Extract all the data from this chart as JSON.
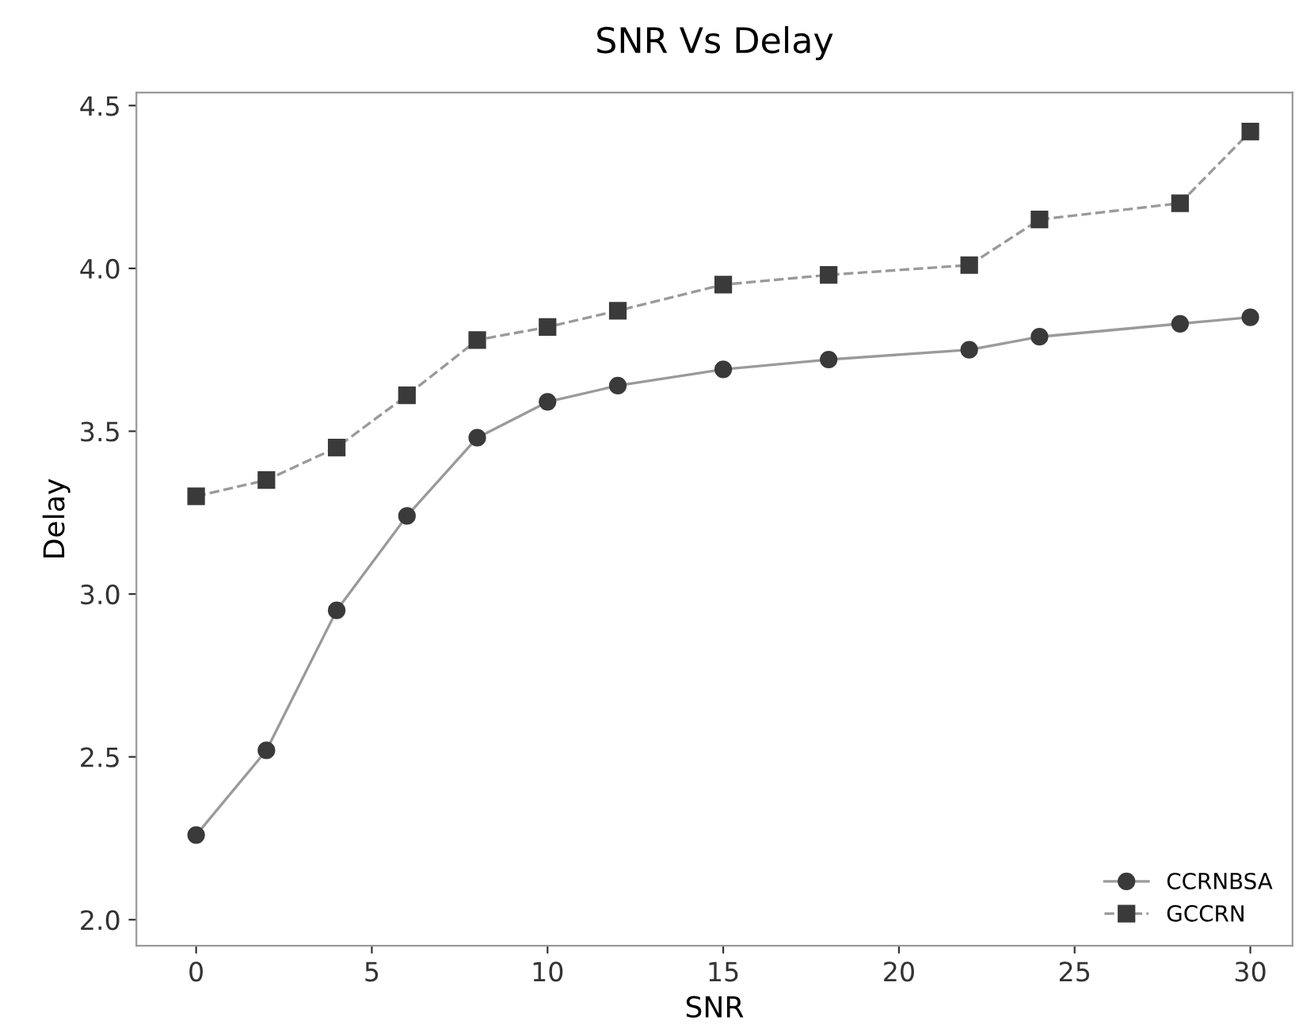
{
  "chart_data": {
    "type": "line",
    "title": "SNR Vs Delay",
    "xlabel": "SNR",
    "ylabel": "Delay",
    "xlim": [
      -1.7,
      31.2
    ],
    "ylim": [
      1.92,
      4.54
    ],
    "xticks": [
      0,
      5,
      10,
      15,
      20,
      25,
      30
    ],
    "yticks": [
      {
        "value": 2.0,
        "label": "2.0"
      },
      {
        "value": 2.5,
        "label": "2.5"
      },
      {
        "value": 3.0,
        "label": "3.0"
      },
      {
        "value": 3.5,
        "label": "3.5"
      },
      {
        "value": 4.0,
        "label": "4.0"
      },
      {
        "value": 4.5,
        "label": "4.5"
      }
    ],
    "x": [
      0,
      2,
      4,
      6,
      8,
      10,
      12,
      15,
      18,
      22,
      24,
      28,
      30
    ],
    "series": [
      {
        "name": "CCRNBSA",
        "color": "#3a3a3a",
        "marker": "circle",
        "line_style": "solid",
        "values": [
          2.26,
          2.52,
          2.95,
          3.24,
          3.48,
          3.59,
          3.64,
          3.69,
          3.72,
          3.75,
          3.79,
          3.83,
          3.85
        ]
      },
      {
        "name": "GCCRN",
        "color": "#3a3a3a",
        "marker": "square",
        "line_style": "dashed",
        "values": [
          3.3,
          3.35,
          3.45,
          3.61,
          3.78,
          3.82,
          3.87,
          3.95,
          3.98,
          4.01,
          4.15,
          4.2,
          4.42
        ]
      }
    ],
    "legend": "lower right",
    "grid": false
  }
}
